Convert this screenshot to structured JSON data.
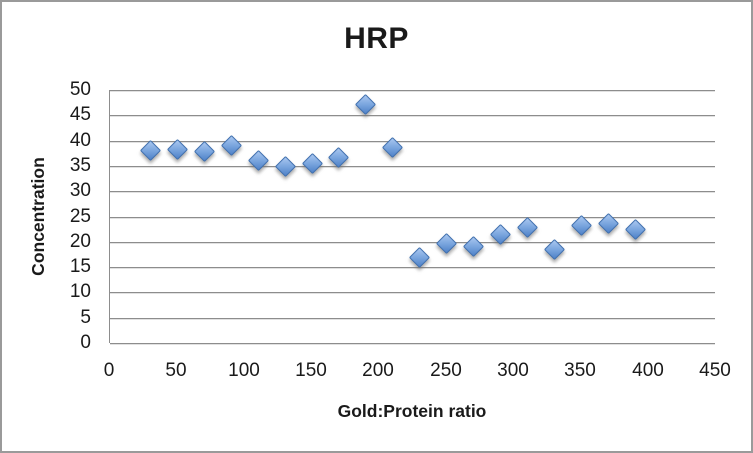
{
  "chart_data": {
    "type": "scatter",
    "title": "HRP",
    "xlabel": "Gold:Protein ratio",
    "ylabel": "Concentration",
    "xlim": [
      0,
      450
    ],
    "ylim": [
      0,
      50
    ],
    "x_ticks": [
      0,
      50,
      100,
      150,
      200,
      250,
      300,
      350,
      400,
      450
    ],
    "y_ticks": [
      0,
      5,
      10,
      15,
      20,
      25,
      30,
      35,
      40,
      45,
      50
    ],
    "grid": true,
    "legend": "none",
    "series": [
      {
        "name": "Concentration",
        "marker": "diamond",
        "points": [
          {
            "x": 30,
            "y": 38.0
          },
          {
            "x": 50,
            "y": 38.2
          },
          {
            "x": 70,
            "y": 37.8
          },
          {
            "x": 90,
            "y": 39.0
          },
          {
            "x": 110,
            "y": 36.1
          },
          {
            "x": 130,
            "y": 34.8
          },
          {
            "x": 150,
            "y": 35.4
          },
          {
            "x": 170,
            "y": 36.6
          },
          {
            "x": 190,
            "y": 47.2
          },
          {
            "x": 210,
            "y": 38.6
          },
          {
            "x": 230,
            "y": 16.9
          },
          {
            "x": 250,
            "y": 19.7
          },
          {
            "x": 270,
            "y": 19.0
          },
          {
            "x": 290,
            "y": 21.5
          },
          {
            "x": 310,
            "y": 22.8
          },
          {
            "x": 330,
            "y": 18.5
          },
          {
            "x": 350,
            "y": 23.3
          },
          {
            "x": 370,
            "y": 23.6
          },
          {
            "x": 390,
            "y": 22.4
          }
        ]
      }
    ],
    "colors": {
      "marker_fill_light": "#aac7ef",
      "marker_fill_mid": "#7fa9e0",
      "marker_fill_dark": "#4f82c8",
      "marker_border": "#3f6fae",
      "gridline": "#8d8d8d",
      "text": "#1a1a1a",
      "frame_border": "#9a9a9a",
      "background": "#ffffff"
    }
  }
}
